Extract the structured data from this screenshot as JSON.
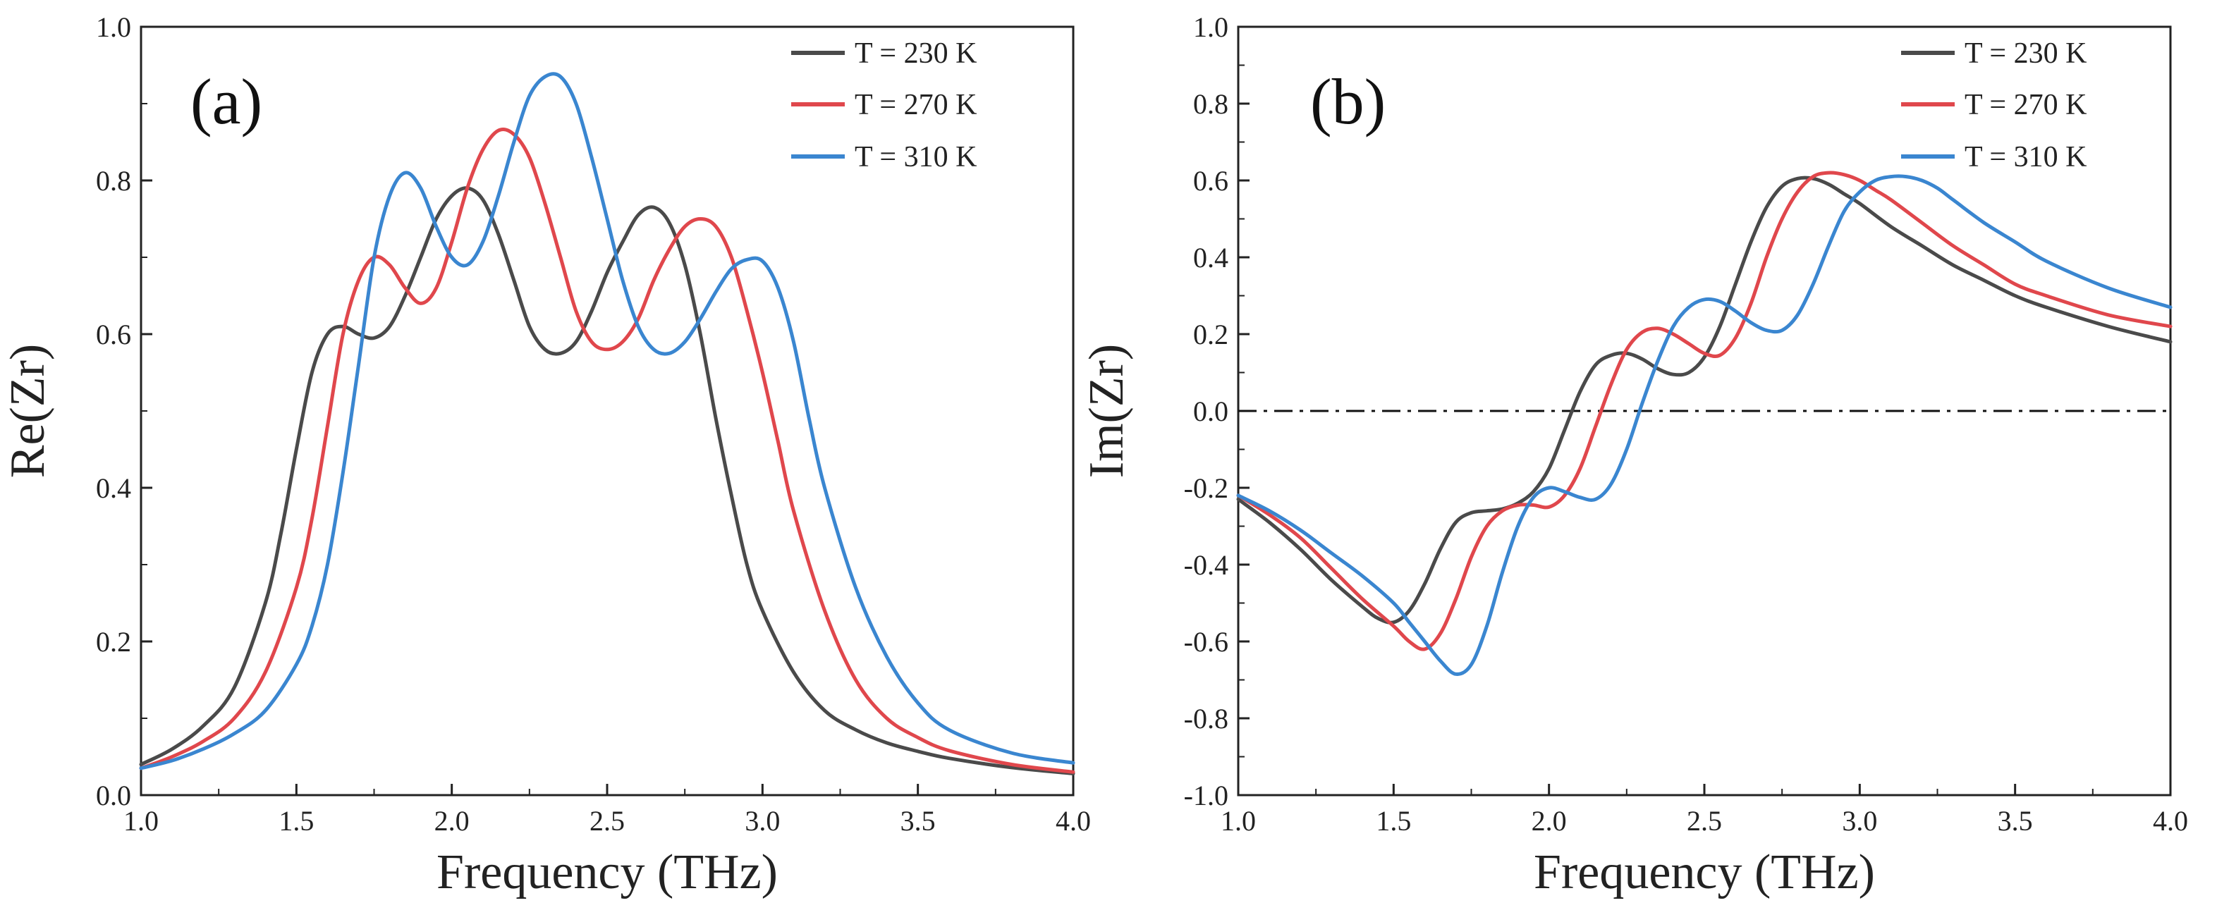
{
  "colors": {
    "T230": "#4a4a4a",
    "T270": "#e0474c",
    "T310": "#3a86d0",
    "axis": "#222222",
    "zero_line": "#111111"
  },
  "chart_data": [
    {
      "type": "line",
      "panel_label": "(a)",
      "xlabel": "Frequency (THz)",
      "ylabel": "Re(Zr)",
      "xlim": [
        1.0,
        4.0
      ],
      "ylim": [
        0.0,
        1.0
      ],
      "xticks": [
        "1.0",
        "1.5",
        "2.0",
        "2.5",
        "3.0",
        "3.5",
        "4.0"
      ],
      "yticks": [
        "0.0",
        "0.2",
        "0.4",
        "0.6",
        "0.8",
        "1.0"
      ],
      "legend_position": "top-right",
      "series": [
        {
          "name": "T = 230 K",
          "color_key": "T230",
          "x": [
            1.0,
            1.1,
            1.2,
            1.3,
            1.4,
            1.45,
            1.5,
            1.55,
            1.6,
            1.65,
            1.7,
            1.75,
            1.8,
            1.85,
            1.9,
            1.95,
            2.0,
            2.05,
            2.1,
            2.15,
            2.2,
            2.25,
            2.3,
            2.35,
            2.4,
            2.45,
            2.5,
            2.55,
            2.6,
            2.65,
            2.7,
            2.75,
            2.8,
            2.85,
            2.9,
            2.95,
            3.0,
            3.1,
            3.2,
            3.3,
            3.4,
            3.5,
            3.6,
            3.8,
            4.0
          ],
          "y": [
            0.04,
            0.06,
            0.09,
            0.14,
            0.25,
            0.34,
            0.45,
            0.55,
            0.6,
            0.61,
            0.6,
            0.595,
            0.61,
            0.65,
            0.7,
            0.75,
            0.78,
            0.79,
            0.775,
            0.73,
            0.67,
            0.61,
            0.58,
            0.575,
            0.59,
            0.63,
            0.68,
            0.72,
            0.755,
            0.765,
            0.745,
            0.69,
            0.6,
            0.49,
            0.39,
            0.3,
            0.24,
            0.16,
            0.11,
            0.085,
            0.068,
            0.057,
            0.048,
            0.036,
            0.028
          ]
        },
        {
          "name": "T = 270 K",
          "color_key": "T270",
          "x": [
            1.0,
            1.1,
            1.2,
            1.3,
            1.4,
            1.5,
            1.55,
            1.6,
            1.65,
            1.7,
            1.75,
            1.8,
            1.85,
            1.9,
            1.95,
            2.0,
            2.05,
            2.1,
            2.15,
            2.2,
            2.25,
            2.3,
            2.35,
            2.4,
            2.45,
            2.5,
            2.55,
            2.6,
            2.65,
            2.7,
            2.75,
            2.8,
            2.85,
            2.9,
            2.95,
            3.0,
            3.05,
            3.1,
            3.2,
            3.3,
            3.4,
            3.5,
            3.6,
            3.8,
            4.0
          ],
          "y": [
            0.035,
            0.05,
            0.07,
            0.1,
            0.16,
            0.27,
            0.36,
            0.48,
            0.6,
            0.67,
            0.7,
            0.69,
            0.66,
            0.64,
            0.66,
            0.72,
            0.79,
            0.84,
            0.865,
            0.86,
            0.83,
            0.77,
            0.7,
            0.63,
            0.59,
            0.58,
            0.59,
            0.62,
            0.67,
            0.71,
            0.74,
            0.75,
            0.74,
            0.7,
            0.63,
            0.55,
            0.46,
            0.37,
            0.24,
            0.15,
            0.1,
            0.075,
            0.058,
            0.04,
            0.03
          ]
        },
        {
          "name": "T = 310 K",
          "color_key": "T310",
          "x": [
            1.0,
            1.1,
            1.2,
            1.3,
            1.4,
            1.5,
            1.55,
            1.6,
            1.65,
            1.7,
            1.75,
            1.8,
            1.85,
            1.9,
            1.95,
            2.0,
            2.05,
            2.1,
            2.15,
            2.2,
            2.25,
            2.3,
            2.35,
            2.4,
            2.45,
            2.5,
            2.55,
            2.6,
            2.65,
            2.7,
            2.75,
            2.8,
            2.85,
            2.9,
            2.95,
            3.0,
            3.05,
            3.1,
            3.15,
            3.2,
            3.3,
            3.4,
            3.5,
            3.6,
            3.8,
            4.0
          ],
          "y": [
            0.035,
            0.045,
            0.06,
            0.08,
            0.11,
            0.17,
            0.22,
            0.3,
            0.42,
            0.56,
            0.7,
            0.78,
            0.81,
            0.79,
            0.74,
            0.7,
            0.69,
            0.72,
            0.78,
            0.85,
            0.91,
            0.935,
            0.935,
            0.9,
            0.83,
            0.75,
            0.67,
            0.61,
            0.58,
            0.575,
            0.59,
            0.62,
            0.655,
            0.685,
            0.697,
            0.695,
            0.66,
            0.59,
            0.49,
            0.4,
            0.27,
            0.18,
            0.12,
            0.085,
            0.055,
            0.042
          ]
        }
      ]
    },
    {
      "type": "line",
      "panel_label": "(b)",
      "xlabel": "Frequency (THz)",
      "ylabel": "Im(Zr)",
      "xlim": [
        1.0,
        4.0
      ],
      "ylim": [
        -1.0,
        1.0
      ],
      "xticks": [
        "1.0",
        "1.5",
        "2.0",
        "2.5",
        "3.0",
        "3.5",
        "4.0"
      ],
      "yticks": [
        "-1.0",
        "-0.8",
        "-0.6",
        "-0.4",
        "-0.2",
        "0.0",
        "0.2",
        "0.4",
        "0.6",
        "0.8",
        "1.0"
      ],
      "reference_line_y": 0.0,
      "legend_position": "top-right",
      "series": [
        {
          "name": "T = 230 K",
          "color_key": "T230",
          "x": [
            1.0,
            1.1,
            1.2,
            1.3,
            1.4,
            1.45,
            1.5,
            1.55,
            1.6,
            1.65,
            1.7,
            1.75,
            1.8,
            1.85,
            1.9,
            1.95,
            2.0,
            2.05,
            2.1,
            2.15,
            2.2,
            2.25,
            2.3,
            2.35,
            2.4,
            2.45,
            2.5,
            2.55,
            2.6,
            2.65,
            2.7,
            2.75,
            2.8,
            2.85,
            2.9,
            2.95,
            3.0,
            3.1,
            3.2,
            3.3,
            3.4,
            3.5,
            3.6,
            3.8,
            4.0
          ],
          "y": [
            -0.23,
            -0.29,
            -0.36,
            -0.44,
            -0.51,
            -0.54,
            -0.55,
            -0.52,
            -0.45,
            -0.36,
            -0.29,
            -0.265,
            -0.26,
            -0.255,
            -0.24,
            -0.21,
            -0.15,
            -0.05,
            0.05,
            0.12,
            0.145,
            0.15,
            0.135,
            0.11,
            0.095,
            0.1,
            0.14,
            0.22,
            0.33,
            0.44,
            0.53,
            0.585,
            0.605,
            0.605,
            0.59,
            0.565,
            0.54,
            0.48,
            0.43,
            0.38,
            0.34,
            0.3,
            0.27,
            0.22,
            0.18
          ]
        },
        {
          "name": "T = 270 K",
          "color_key": "T270",
          "x": [
            1.0,
            1.1,
            1.2,
            1.3,
            1.4,
            1.5,
            1.55,
            1.6,
            1.65,
            1.7,
            1.75,
            1.8,
            1.85,
            1.9,
            1.95,
            2.0,
            2.05,
            2.1,
            2.15,
            2.2,
            2.25,
            2.3,
            2.35,
            2.4,
            2.45,
            2.5,
            2.55,
            2.6,
            2.65,
            2.7,
            2.75,
            2.8,
            2.85,
            2.9,
            2.95,
            3.0,
            3.05,
            3.1,
            3.2,
            3.3,
            3.4,
            3.5,
            3.6,
            3.8,
            4.0
          ],
          "y": [
            -0.22,
            -0.27,
            -0.33,
            -0.41,
            -0.49,
            -0.56,
            -0.6,
            -0.62,
            -0.58,
            -0.49,
            -0.38,
            -0.3,
            -0.26,
            -0.245,
            -0.245,
            -0.25,
            -0.22,
            -0.15,
            -0.04,
            0.07,
            0.16,
            0.205,
            0.215,
            0.2,
            0.175,
            0.15,
            0.145,
            0.19,
            0.28,
            0.4,
            0.5,
            0.57,
            0.61,
            0.62,
            0.615,
            0.6,
            0.575,
            0.55,
            0.49,
            0.43,
            0.38,
            0.33,
            0.3,
            0.25,
            0.22
          ]
        },
        {
          "name": "T = 310 K",
          "color_key": "T310",
          "x": [
            1.0,
            1.1,
            1.2,
            1.3,
            1.4,
            1.5,
            1.55,
            1.6,
            1.65,
            1.7,
            1.75,
            1.8,
            1.85,
            1.9,
            1.95,
            2.0,
            2.05,
            2.1,
            2.15,
            2.2,
            2.25,
            2.3,
            2.35,
            2.4,
            2.45,
            2.5,
            2.55,
            2.6,
            2.65,
            2.7,
            2.75,
            2.8,
            2.85,
            2.9,
            2.95,
            3.0,
            3.05,
            3.1,
            3.15,
            3.2,
            3.25,
            3.3,
            3.4,
            3.5,
            3.6,
            3.8,
            4.0
          ],
          "y": [
            -0.22,
            -0.26,
            -0.31,
            -0.37,
            -0.43,
            -0.5,
            -0.55,
            -0.6,
            -0.65,
            -0.685,
            -0.66,
            -0.56,
            -0.42,
            -0.3,
            -0.225,
            -0.2,
            -0.21,
            -0.225,
            -0.23,
            -0.19,
            -0.1,
            0.02,
            0.13,
            0.22,
            0.27,
            0.29,
            0.285,
            0.26,
            0.23,
            0.21,
            0.21,
            0.25,
            0.33,
            0.43,
            0.52,
            0.57,
            0.6,
            0.61,
            0.61,
            0.6,
            0.58,
            0.55,
            0.49,
            0.44,
            0.39,
            0.32,
            0.27
          ]
        }
      ]
    }
  ]
}
